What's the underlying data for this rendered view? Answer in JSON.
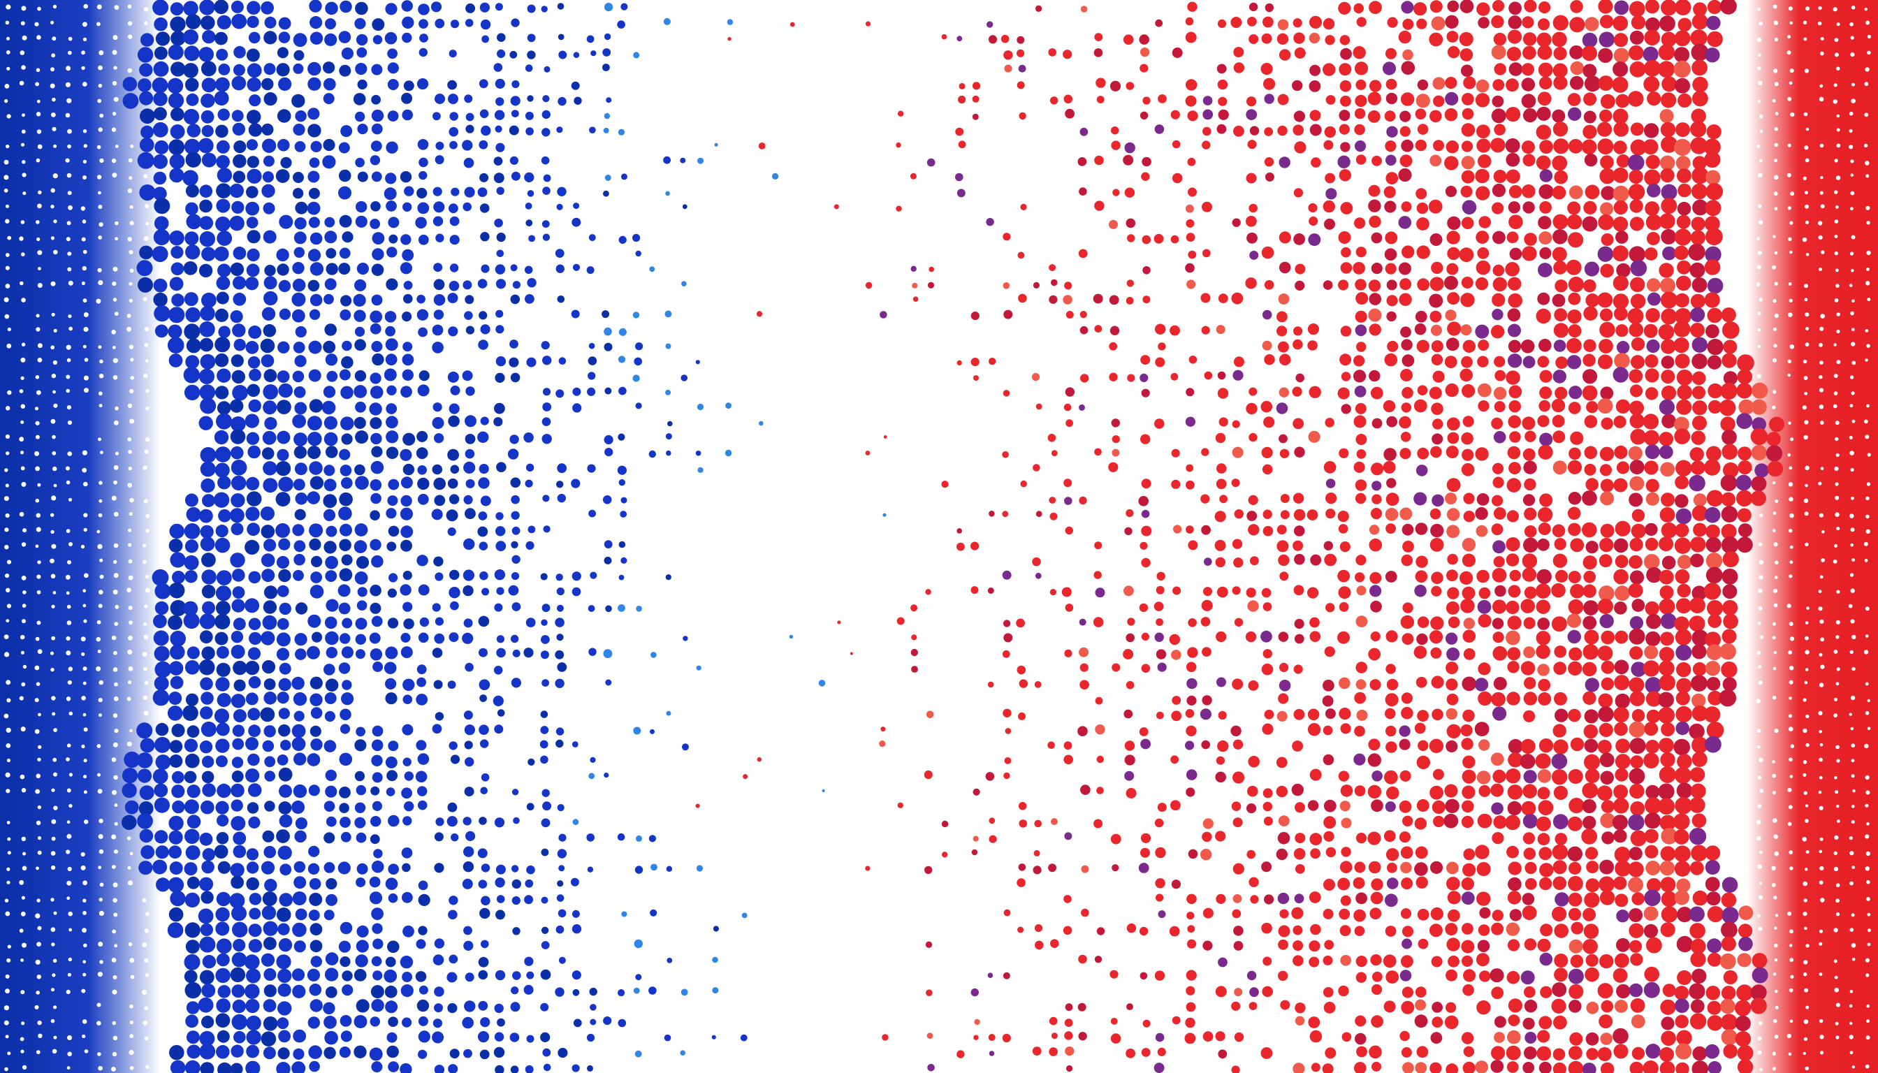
{
  "image": {
    "subject": "halftone-tricolor-dots",
    "colors": {
      "blue": "#1535c8",
      "blue_deep": "#0b2fa8",
      "blue_light": "#2f86e6",
      "white": "#ffffff",
      "red": "#e8262b",
      "red_deep": "#c2183a",
      "red_light": "#f05a4a",
      "purple_accent": "#7a2a8c"
    }
  }
}
